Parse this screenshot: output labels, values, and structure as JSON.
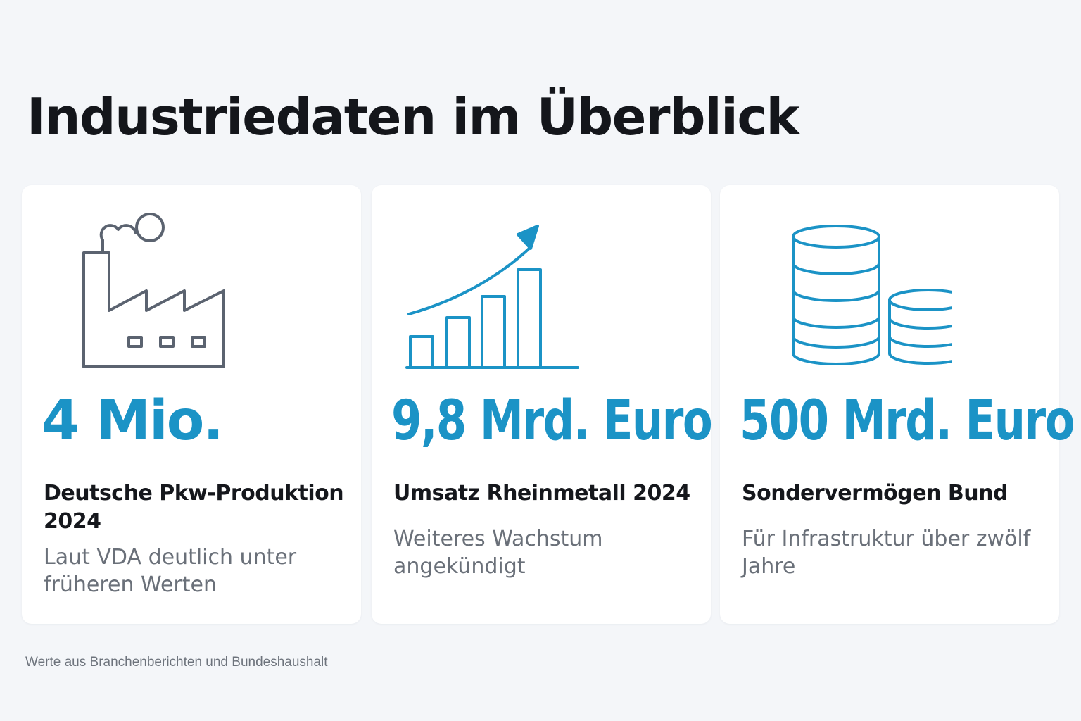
{
  "title": "Industriedaten im Überblick",
  "cards": [
    {
      "icon": "factory-icon",
      "value": "4 Mio.",
      "label": "Deutsche Pkw-Produktion 2024",
      "description": "Laut VDA deutlich unter früheren Werten"
    },
    {
      "icon": "growth-chart-icon",
      "value": "9,8 Mrd. Euro",
      "label": "Umsatz Rheinmetall 2024",
      "description": "Weiteres Wachstum angekündigt"
    },
    {
      "icon": "coin-stacks-icon",
      "value": "500 Mrd. Euro",
      "label": "Sondervermögen Bund",
      "description": "Für Infrastruktur über zwölf Jahre"
    }
  ],
  "footer": "Werte aus Branchenberichten und Bundeshaushalt",
  "colors": {
    "accent": "#1b93c6",
    "icon_gray": "#5b6370",
    "background": "#f4f6f9",
    "card": "#ffffff",
    "text": "#15171c",
    "muted_text": "#6a7079"
  }
}
